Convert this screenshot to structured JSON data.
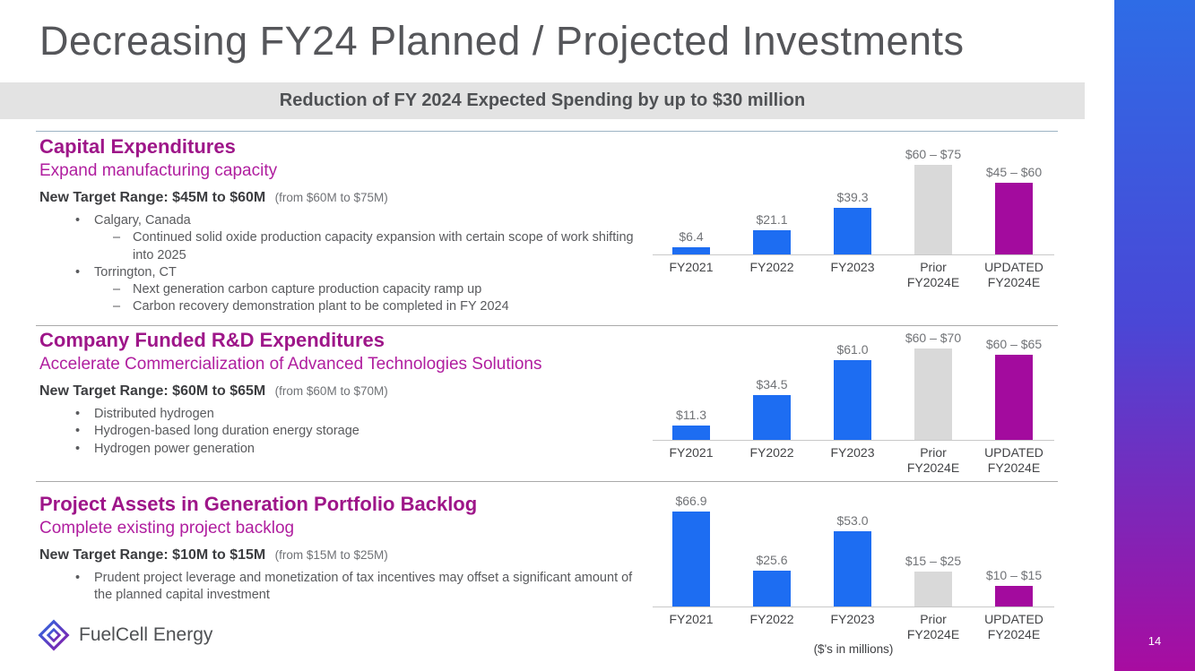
{
  "slide": {
    "title": "Decreasing FY24 Planned / Projected Investments",
    "banner": "Reduction of FY 2024 Expected Spending by up to $30 million",
    "page_number": "14",
    "footnote": "($'s in millions)",
    "logo_text": "FuelCell Energy"
  },
  "colors": {
    "bar_actual": "#1D6DF2",
    "bar_prior": "#D9D9D9",
    "bar_updated": "#A30B9E",
    "heading": "#9E1689",
    "accent_gradient_top": "#2E6CE6",
    "accent_gradient_bottom": "#A80CA0"
  },
  "sections": [
    {
      "heading": "Capital Expenditures",
      "subheading": "Expand manufacturing capacity",
      "target": "New Target Range: $45M to $60M",
      "target_note": "(from $60M to $75M)",
      "bullets": [
        {
          "level": 1,
          "text": "Calgary, Canada"
        },
        {
          "level": 2,
          "text": "Continued solid oxide production capacity expansion with certain scope of work shifting into 2025"
        },
        {
          "level": 1,
          "text": "Torrington, CT"
        },
        {
          "level": 2,
          "text": "Next generation carbon capture production capacity ramp up"
        },
        {
          "level": 2,
          "text": "Carbon recovery demonstration plant to be completed in FY 2024"
        }
      ]
    },
    {
      "heading": "Company Funded R&D Expenditures",
      "subheading": "Accelerate Commercialization of Advanced Technologies Solutions",
      "target": "New Target Range: $60M to $65M",
      "target_note": "(from $60M to $70M)",
      "bullets": [
        {
          "level": 1,
          "text": "Distributed hydrogen"
        },
        {
          "level": 1,
          "text": "Hydrogen-based long duration energy storage"
        },
        {
          "level": 1,
          "text": "Hydrogen power generation"
        }
      ]
    },
    {
      "heading": "Project Assets in Generation Portfolio Backlog",
      "subheading": "Complete existing project backlog",
      "target": "New Target Range: $10M to $15M",
      "target_note": "(from $15M to $25M)",
      "bullets": [
        {
          "level": 1,
          "text": "Prudent project leverage and monetization of tax incentives may offset a significant amount of the planned capital investment"
        }
      ]
    }
  ],
  "chart_data": [
    {
      "type": "bar",
      "name": "capital-expenditures",
      "unit": "$ millions",
      "categories": [
        "FY2021",
        "FY2022",
        "FY2023",
        "Prior FY2024E",
        "UPDATED FY2024E"
      ],
      "category_lines": [
        [
          "FY2021"
        ],
        [
          "FY2022"
        ],
        [
          "FY2023"
        ],
        [
          "Prior",
          "FY2024E"
        ],
        [
          "UPDATED",
          "FY2024E"
        ]
      ],
      "values": [
        6.4,
        21.1,
        39.3,
        [
          60,
          75
        ],
        [
          45,
          60
        ]
      ],
      "plot_values": [
        6.4,
        21.1,
        39.3,
        75,
        60
      ],
      "bar_labels": [
        "$6.4",
        "$21.1",
        "$39.3",
        "$60 – $75",
        "$45 – $60"
      ],
      "bar_color_keys": [
        "actual",
        "actual",
        "actual",
        "prior",
        "updated"
      ],
      "ylim": [
        0,
        78
      ]
    },
    {
      "type": "bar",
      "name": "company-funded-rd-expenditures",
      "unit": "$ millions",
      "categories": [
        "FY2021",
        "FY2022",
        "FY2023",
        "Prior FY2024E",
        "UPDATED FY2024E"
      ],
      "category_lines": [
        [
          "FY2021"
        ],
        [
          "FY2022"
        ],
        [
          "FY2023"
        ],
        [
          "Prior",
          "FY2024E"
        ],
        [
          "UPDATED",
          "FY2024E"
        ]
      ],
      "values": [
        11.3,
        34.5,
        61.0,
        [
          60,
          70
        ],
        [
          60,
          65
        ]
      ],
      "plot_values": [
        11.3,
        34.5,
        61.0,
        70,
        65
      ],
      "bar_labels": [
        "$11.3",
        "$34.5",
        "$61.0",
        "$60 – $70",
        "$60 – $65"
      ],
      "bar_color_keys": [
        "actual",
        "actual",
        "actual",
        "prior",
        "updated"
      ],
      "ylim": [
        0,
        72
      ]
    },
    {
      "type": "bar",
      "name": "project-assets-generation-portfolio-backlog",
      "unit": "$ millions",
      "categories": [
        "FY2021",
        "FY2022",
        "FY2023",
        "Prior FY2024E",
        "UPDATED FY2024E"
      ],
      "category_lines": [
        [
          "FY2021"
        ],
        [
          "FY2022"
        ],
        [
          "FY2023"
        ],
        [
          "Prior",
          "FY2024E"
        ],
        [
          "UPDATED",
          "FY2024E"
        ]
      ],
      "values": [
        66.9,
        25.6,
        53.0,
        [
          15,
          25
        ],
        [
          10,
          15
        ]
      ],
      "plot_values": [
        66.9,
        25.6,
        53.0,
        25,
        15
      ],
      "bar_labels": [
        "$66.9",
        "$25.6",
        "$53.0",
        "$15 – $25",
        "$10 – $15"
      ],
      "bar_color_keys": [
        "actual",
        "actual",
        "actual",
        "prior",
        "updated"
      ],
      "ylim": [
        0,
        70
      ]
    }
  ]
}
